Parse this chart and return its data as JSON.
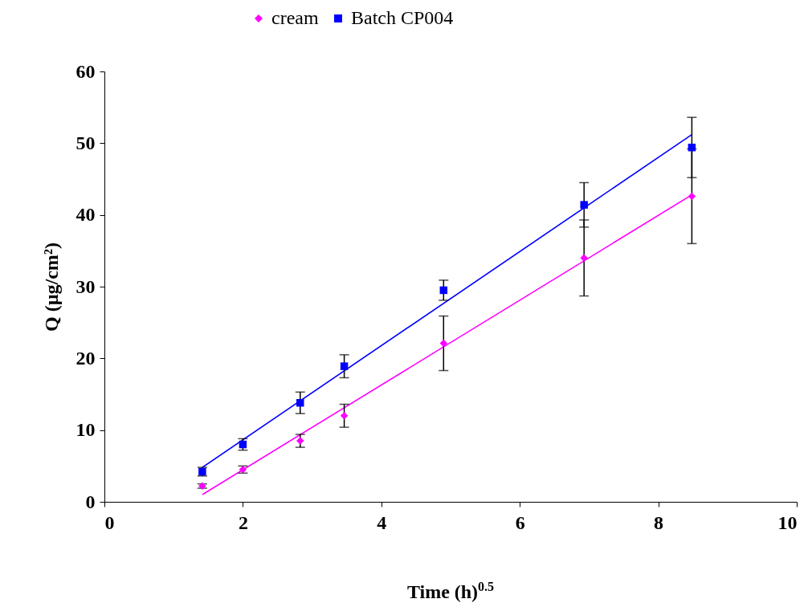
{
  "chart_data": {
    "type": "scatter",
    "xlabel": "Time (h)$^{0.5}$",
    "ylabel": "Q (µg/cm²)",
    "xlim": [
      0,
      10
    ],
    "xticks": [
      0,
      2,
      4,
      6,
      8,
      10
    ],
    "ylim": [
      0,
      60
    ],
    "yticks": [
      0,
      10,
      20,
      30,
      40,
      50,
      60
    ],
    "grid": false,
    "legend": "top",
    "series": [
      {
        "name": "cream",
        "color": "#ff00ff",
        "marker": "diamond",
        "x": [
          1.414,
          2,
          2.828,
          3.464,
          4.899,
          6.928,
          8.485
        ],
        "values": [
          2.2,
          4.5,
          8.5,
          12.0,
          22.1,
          34.0,
          42.6
        ],
        "errors": [
          0.3,
          0.5,
          0.9,
          1.6,
          3.8,
          5.3,
          6.6
        ]
      },
      {
        "name": "Batch CP004",
        "color": "#0000ff",
        "marker": "square",
        "x": [
          1.414,
          2,
          2.828,
          3.464,
          4.899,
          6.928,
          8.485
        ],
        "values": [
          4.2,
          8.0,
          13.8,
          18.9,
          29.5,
          41.4,
          49.4
        ],
        "errors": [
          0.6,
          0.8,
          1.5,
          1.6,
          1.4,
          3.1,
          4.2
        ]
      },
      {
        "type": "line",
        "color": "#ff00ff",
        "x": [
          1.414,
          8.485
        ],
        "values": [
          1.0,
          42.8
        ]
      },
      {
        "type": "line",
        "color": "#0000ff",
        "x": [
          1.414,
          8.485
        ],
        "values": [
          4.8,
          51.2
        ]
      }
    ]
  }
}
